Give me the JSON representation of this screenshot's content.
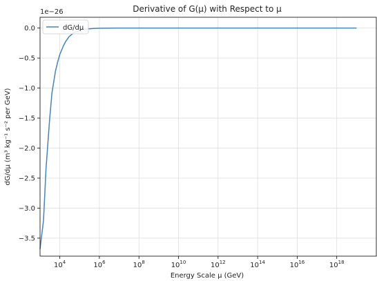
{
  "chart_data": {
    "type": "line",
    "title": "Derivative of G(μ) with Respect to μ",
    "xlabel": "Energy Scale μ (GeV)",
    "ylabel": "dG/dμ (m³ kg⁻¹ s⁻² per GeV)",
    "x_scale": "log",
    "xlim": [
      1000,
      1e+20
    ],
    "x_ticks": [
      {
        "value": 10000.0,
        "mantissa": "10",
        "exp": "4"
      },
      {
        "value": 1000000.0,
        "mantissa": "10",
        "exp": "6"
      },
      {
        "value": 100000000.0,
        "mantissa": "10",
        "exp": "8"
      },
      {
        "value": 10000000000.0,
        "mantissa": "10",
        "exp": "10"
      },
      {
        "value": 1000000000000.0,
        "mantissa": "10",
        "exp": "12"
      },
      {
        "value": 100000000000000.0,
        "mantissa": "10",
        "exp": "14"
      },
      {
        "value": 1e+16,
        "mantissa": "10",
        "exp": "16"
      },
      {
        "value": 1e+18,
        "mantissa": "10",
        "exp": "18"
      }
    ],
    "ylim": [
      -3.8,
      0.18
    ],
    "y_ticks": [
      0.0,
      -0.5,
      -1.0,
      -1.5,
      -2.0,
      -2.5,
      -3.0,
      -3.5
    ],
    "y_tick_labels": [
      "0.0",
      "−0.5",
      "−1.0",
      "−1.5",
      "−2.0",
      "−2.5",
      "−3.0",
      "−3.5"
    ],
    "y_offset_label": "1e−26",
    "grid": true,
    "legend_position": "upper-left",
    "colors": {
      "line": "#4682b4",
      "grid": "#dddddd",
      "axis": "#000000"
    },
    "series": [
      {
        "name": "dG/dμ",
        "x": [
          1000,
          1500,
          2000,
          3000,
          4000,
          6000,
          8000,
          10000,
          15000,
          20000,
          30000,
          50000,
          100000,
          200000,
          500000,
          1000000,
          10000000.0,
          100000000.0,
          10000000000.0,
          1000000000000.0,
          100000000000000.0,
          1e+16,
          1e+18,
          1e+19
        ],
        "y": [
          -3.68,
          -3.2,
          -2.35,
          -1.55,
          -1.08,
          -0.72,
          -0.55,
          -0.44,
          -0.3,
          -0.22,
          -0.14,
          -0.08,
          -0.04,
          -0.018,
          -0.007,
          -0.003,
          0.0,
          0.0,
          0.0,
          0.0,
          0.0,
          0.0,
          0.0,
          0.0
        ]
      }
    ]
  }
}
